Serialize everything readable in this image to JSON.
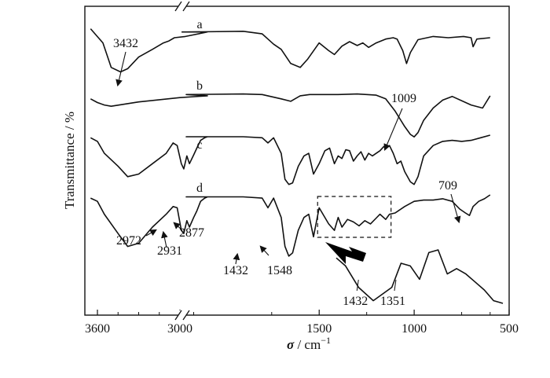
{
  "chart_data": {
    "type": "line",
    "title": "",
    "xlabel_symbol": "σ",
    "xlabel_unit": " / cm",
    "xlabel_exponent": "−1",
    "ylabel": "Transmittance / %",
    "x_reversed": true,
    "x_axis_break": true,
    "x_ticks": [
      {
        "value": 3600,
        "label": "3600"
      },
      {
        "value": 3000,
        "label": "3000"
      },
      {
        "value": 1500,
        "label": "1500"
      },
      {
        "value": 1000,
        "label": "1000"
      },
      {
        "value": 500,
        "label": "500"
      }
    ],
    "y_ticks_shown": false,
    "series": [
      {
        "name": "a",
        "x": [
          3650,
          3560,
          3500,
          3432,
          3380,
          3300,
          3200,
          3120,
          3080,
          3040,
          2960,
          2800,
          2600,
          2200,
          1900,
          1800,
          1770,
          1740,
          1700,
          1650,
          1600,
          1560,
          1500,
          1450,
          1420,
          1380,
          1340,
          1300,
          1270,
          1240,
          1200,
          1150,
          1110,
          1090,
          1060,
          1040,
          1020,
          980,
          900,
          820,
          740,
          700,
          690,
          670,
          600
        ],
        "y": [
          0.08,
          0.3,
          0.68,
          0.75,
          0.7,
          0.52,
          0.4,
          0.3,
          0.27,
          0.22,
          0.2,
          0.13,
          0.13,
          0.13,
          0.12,
          0.16,
          0.24,
          0.32,
          0.4,
          0.62,
          0.68,
          0.55,
          0.3,
          0.42,
          0.48,
          0.35,
          0.28,
          0.34,
          0.3,
          0.37,
          0.3,
          0.24,
          0.22,
          0.24,
          0.42,
          0.62,
          0.45,
          0.25,
          0.2,
          0.22,
          0.2,
          0.22,
          0.36,
          0.24,
          0.22
        ],
        "label": "a"
      },
      {
        "name": "b",
        "x": [
          3650,
          3600,
          3550,
          3500,
          3300,
          3000,
          2800,
          2200,
          1900,
          1800,
          1700,
          1650,
          1600,
          1550,
          1400,
          1300,
          1200,
          1150,
          1100,
          1050,
          1020,
          1000,
          980,
          950,
          900,
          850,
          800,
          700,
          640,
          600
        ],
        "y": [
          0.1,
          0.16,
          0.2,
          0.22,
          0.15,
          0.08,
          0.05,
          0.03,
          0.02,
          0.03,
          0.1,
          0.14,
          0.05,
          0.03,
          0.03,
          0.02,
          0.04,
          0.1,
          0.3,
          0.55,
          0.68,
          0.72,
          0.65,
          0.45,
          0.25,
          0.12,
          0.06,
          0.2,
          0.25,
          0.05
        ],
        "label": "b"
      },
      {
        "name": "c",
        "x": [
          3650,
          3600,
          3550,
          3450,
          3380,
          3300,
          3200,
          3100,
          3050,
          3020,
          2990,
          2972,
          2950,
          2931,
          2900,
          2877,
          2850,
          2820,
          2800,
          2200,
          1900,
          1800,
          1770,
          1740,
          1700,
          1680,
          1660,
          1640,
          1610,
          1580,
          1555,
          1530,
          1500,
          1470,
          1445,
          1420,
          1400,
          1380,
          1360,
          1340,
          1320,
          1300,
          1280,
          1260,
          1240,
          1220,
          1200,
          1180,
          1160,
          1150,
          1130,
          1110,
          1090,
          1070,
          1050,
          1020,
          1000,
          980,
          950,
          900,
          850,
          800,
          750,
          700,
          650,
          600
        ],
        "y": [
          0.05,
          0.12,
          0.35,
          0.6,
          0.8,
          0.75,
          0.55,
          0.35,
          0.15,
          0.2,
          0.55,
          0.65,
          0.4,
          0.55,
          0.38,
          0.25,
          0.1,
          0.05,
          0.03,
          0.03,
          0.03,
          0.05,
          0.15,
          0.05,
          0.35,
          0.85,
          0.95,
          0.92,
          0.6,
          0.4,
          0.35,
          0.75,
          0.55,
          0.3,
          0.25,
          0.55,
          0.4,
          0.45,
          0.28,
          0.3,
          0.5,
          0.4,
          0.32,
          0.48,
          0.35,
          0.4,
          0.35,
          0.3,
          0.22,
          0.25,
          0.2,
          0.35,
          0.55,
          0.5,
          0.7,
          0.9,
          0.95,
          0.8,
          0.4,
          0.2,
          0.12,
          0.1,
          0.12,
          0.1,
          0.05,
          0.0
        ],
        "label": "c"
      },
      {
        "name": "d",
        "x": [
          3650,
          3600,
          3550,
          3450,
          3380,
          3300,
          3200,
          3100,
          3050,
          3020,
          2990,
          2972,
          2950,
          2931,
          2900,
          2877,
          2850,
          2820,
          2800,
          2200,
          1900,
          1800,
          1770,
          1740,
          1700,
          1680,
          1660,
          1640,
          1610,
          1580,
          1555,
          1530,
          1500,
          1450,
          1420,
          1400,
          1380,
          1351,
          1320,
          1290,
          1260,
          1230,
          1200,
          1180,
          1150,
          1130,
          1100,
          1050,
          1000,
          950,
          900,
          850,
          800,
          760,
          730,
          709,
          690,
          660,
          630,
          600
        ],
        "y": [
          0.05,
          0.1,
          0.3,
          0.6,
          0.8,
          0.75,
          0.5,
          0.3,
          0.18,
          0.2,
          0.55,
          0.6,
          0.4,
          0.5,
          0.35,
          0.25,
          0.1,
          0.05,
          0.03,
          0.03,
          0.03,
          0.05,
          0.2,
          0.05,
          0.35,
          0.8,
          0.95,
          0.9,
          0.55,
          0.35,
          0.3,
          0.65,
          0.2,
          0.45,
          0.55,
          0.35,
          0.5,
          0.38,
          0.42,
          0.48,
          0.4,
          0.45,
          0.36,
          0.3,
          0.38,
          0.3,
          0.28,
          0.18,
          0.1,
          0.08,
          0.08,
          0.06,
          0.1,
          0.22,
          0.28,
          0.32,
          0.18,
          0.1,
          0.06,
          0.0
        ],
        "label": "d"
      }
    ],
    "inset": {
      "x": [
        1480,
        1460,
        1432,
        1400,
        1360,
        1340,
        1320,
        1300,
        1280,
        1260,
        1240,
        1220,
        1200,
        1180,
        1160,
        1140,
        1120
      ],
      "y": [
        0.85,
        0.7,
        0.3,
        0.05,
        0.3,
        0.75,
        0.7,
        0.45,
        0.95,
        1.0,
        0.55,
        0.65,
        0.55,
        0.4,
        0.25,
        0.05,
        0.0
      ],
      "labels": [
        {
          "text": "1432",
          "x": 1432
        },
        {
          "text": "1351",
          "x": 1351
        }
      ]
    },
    "annotations": [
      {
        "text": "3432",
        "series": "a",
        "x": 3432
      },
      {
        "text": "1009",
        "series": "b",
        "x": 1009
      },
      {
        "text": "709",
        "series": "d",
        "x": 709
      },
      {
        "text": "2972",
        "series": "d",
        "x": 2972
      },
      {
        "text": "2931",
        "series": "d",
        "x": 2931
      },
      {
        "text": "2877",
        "series": "d",
        "x": 2877
      },
      {
        "text": "1432",
        "series": "d",
        "x": 1640
      },
      {
        "text": "1548",
        "series": "d",
        "x": 1555
      }
    ],
    "dashed_box": {
      "x_from": 1500,
      "x_to": 1130,
      "series": "d"
    },
    "grid": false,
    "legend": "none"
  }
}
